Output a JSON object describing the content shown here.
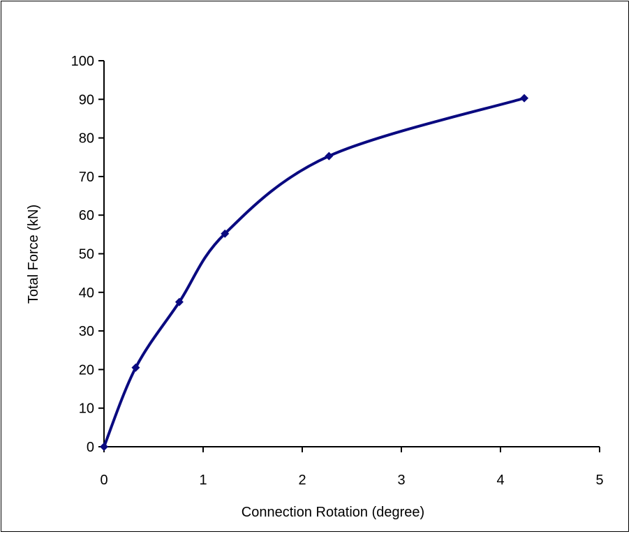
{
  "chart_data": {
    "type": "line",
    "title": "",
    "xlabel": "Connection Rotation (degree)",
    "ylabel": "Total Force (kN)",
    "xlim": [
      0,
      5
    ],
    "ylim": [
      0,
      100
    ],
    "x_ticks": [
      "0",
      "1",
      "2",
      "3",
      "4",
      "5"
    ],
    "y_ticks": [
      "0",
      "10",
      "20",
      "30",
      "40",
      "50",
      "60",
      "70",
      "80",
      "90",
      "100"
    ],
    "grid": false,
    "legend": "none",
    "marker": "diamond",
    "smooth": true,
    "series": [
      {
        "color": "#0a0a80",
        "points": [
          {
            "x": 0,
            "y": 0
          },
          {
            "x": 0.32,
            "y": 20.5
          },
          {
            "x": 0.76,
            "y": 37.5
          },
          {
            "x": 1.22,
            "y": 55.2
          },
          {
            "x": 2.27,
            "y": 75.3
          },
          {
            "x": 4.24,
            "y": 90.3
          }
        ]
      }
    ]
  }
}
